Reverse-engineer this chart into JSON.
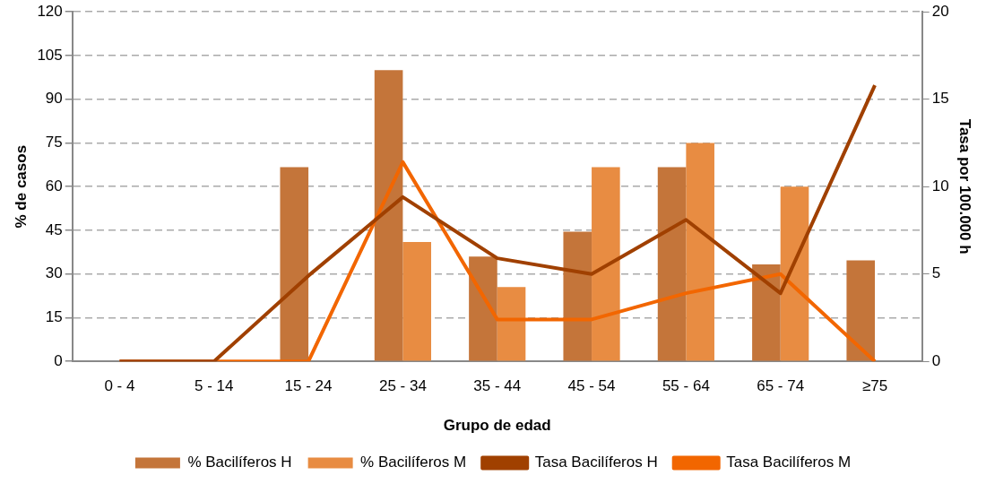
{
  "chart_data": {
    "type": "bar",
    "xlabel": "Grupo de edad",
    "ylabel": "% de casos",
    "y2label": "Tasa por 100.000 h",
    "categories": [
      "0 - 4",
      "5 - 14",
      "15 - 24",
      "25 - 34",
      "35 - 44",
      "45 - 54",
      "55 - 64",
      "65 - 74",
      "≥75"
    ],
    "series": [
      {
        "name": "% Bacilíferos H",
        "color": "#c4753a",
        "values": [
          0,
          0,
          66.7,
          100,
          36,
          44.5,
          66.7,
          33.3,
          34.7
        ]
      },
      {
        "name": "% Bacilíferos M",
        "color": "#e88c42",
        "values": [
          0,
          0,
          0,
          41,
          25.5,
          66.7,
          75,
          60,
          0
        ]
      },
      {
        "name": "Tasa Bacilíferos H",
        "type": "line",
        "axis": "y2",
        "color": "#a04000",
        "values": [
          0,
          0,
          4.9,
          9.4,
          5.9,
          5.0,
          8.1,
          3.9,
          15.8
        ]
      },
      {
        "name": "Tasa Bacilíferos M",
        "type": "line",
        "axis": "y2",
        "color": "#f26600",
        "values": [
          0,
          0,
          0,
          11.4,
          2.4,
          2.4,
          3.9,
          5.0,
          0
        ]
      }
    ],
    "ylim": [
      0,
      120
    ],
    "yticks": [
      0,
      15,
      30,
      45,
      60,
      75,
      90,
      105,
      120
    ],
    "y2lim": [
      0,
      20
    ],
    "y2ticks": [
      0,
      5,
      10,
      15,
      20
    ],
    "grid": "y",
    "legend": "bottom",
    "marker": "none",
    "line_style": "solid"
  }
}
